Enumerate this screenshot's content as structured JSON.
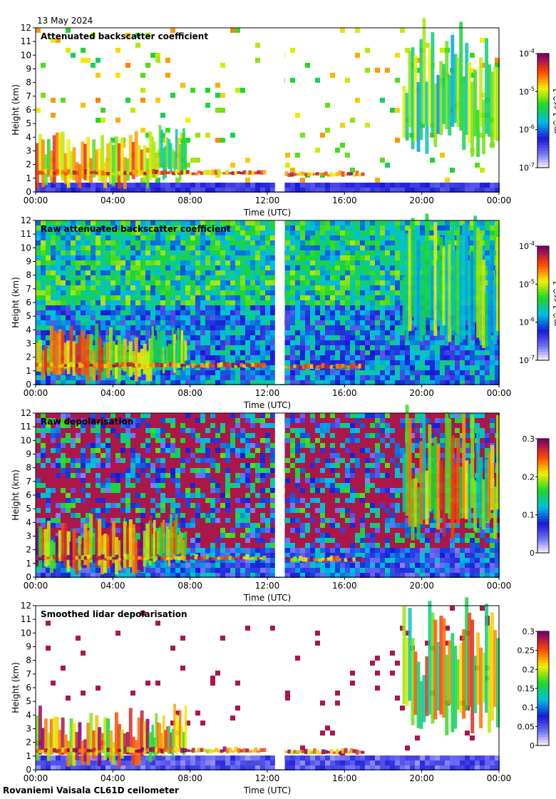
{
  "date": "13 May 2024",
  "instrument": "Rovaniemi Vaisala CL61D ceilometer",
  "chart_data": [
    {
      "type": "heatmap",
      "title": "Attenuated backscatter coefficient",
      "xlabel": "Time (UTC)",
      "ylabel": "Height (km)",
      "xticks": [
        "00:00",
        "04:00",
        "08:00",
        "12:00",
        "16:00",
        "20:00",
        "00:00"
      ],
      "xlim_hours": [
        0,
        24
      ],
      "ylim": [
        0,
        12
      ],
      "yticks": [
        "0",
        "1",
        "2",
        "3",
        "4",
        "5",
        "6",
        "7",
        "8",
        "9",
        "10",
        "11",
        "12"
      ],
      "data_gap_hours": [
        12.4,
        12.9
      ],
      "colorbar": {
        "scale": "log",
        "range": [
          1e-07,
          0.0001
        ],
        "ticks": [
          "10^-7",
          "10^-6",
          "10^-5",
          "10^-4"
        ],
        "unit": "m^-1 sr^-1"
      },
      "features": [
        {
          "name": "low cloud layer",
          "start_h": 0.0,
          "end_h": 6.0,
          "height_km": [
            0.2,
            3.8
          ],
          "level": 0.9
        },
        {
          "name": "cloud patches",
          "start_h": 5.9,
          "end_h": 7.8,
          "height_km": [
            0.8,
            4.1
          ],
          "level": 0.75
        },
        {
          "name": "thin layer",
          "start_h": 0.0,
          "end_h": 11.9,
          "height_km": [
            1.2,
            1.6
          ],
          "level": 1.0
        },
        {
          "name": "evening layer",
          "start_h": 12.9,
          "end_h": 17.0,
          "height_km": [
            1.1,
            1.5
          ],
          "level": 1.0
        },
        {
          "name": "high cloud",
          "start_h": 19.0,
          "end_h": 24.0,
          "height_km": [
            2.5,
            11.0
          ],
          "level": 0.7
        }
      ]
    },
    {
      "type": "heatmap",
      "title": "Raw attenuated backscatter coefficient",
      "xlabel": "Time (UTC)",
      "ylabel": "Height (km)",
      "xticks": [
        "00:00",
        "04:00",
        "08:00",
        "12:00",
        "16:00",
        "20:00",
        "00:00"
      ],
      "xlim_hours": [
        0,
        24
      ],
      "ylim": [
        0,
        12
      ],
      "yticks": [
        "0",
        "1",
        "2",
        "3",
        "4",
        "5",
        "6",
        "7",
        "8",
        "9",
        "10",
        "11",
        "12"
      ],
      "data_gap_hours": [
        12.4,
        12.9
      ],
      "colorbar": {
        "scale": "log",
        "range": [
          1e-07,
          0.0001
        ],
        "ticks": [
          "10^-7",
          "10^-6",
          "10^-5",
          "10^-4"
        ],
        "unit": "m^-1 sr^-1"
      }
    },
    {
      "type": "heatmap",
      "title": "Raw depolarisation",
      "xlabel": "Time (UTC)",
      "ylabel": "Height (km)",
      "xticks": [
        "00:00",
        "04:00",
        "08:00",
        "12:00",
        "16:00",
        "20:00",
        "00:00"
      ],
      "xlim_hours": [
        0,
        24
      ],
      "ylim": [
        0,
        12
      ],
      "yticks": [
        "0",
        "1",
        "2",
        "3",
        "4",
        "5",
        "6",
        "7",
        "8",
        "9",
        "10",
        "11",
        "12"
      ],
      "data_gap_hours": [
        12.4,
        12.9
      ],
      "colorbar": {
        "scale": "linear",
        "range": [
          0,
          0.3
        ],
        "ticks": [
          "0",
          "0.1",
          "0.2",
          "0.3"
        ],
        "unit": ""
      }
    },
    {
      "type": "heatmap",
      "title": "Smoothed lidar depolarisation",
      "xlabel": "Time (UTC)",
      "ylabel": "Height (km)",
      "xticks": [
        "00:00",
        "04:00",
        "08:00",
        "12:00",
        "16:00",
        "20:00",
        "00:00"
      ],
      "xlim_hours": [
        0,
        24
      ],
      "ylim": [
        0,
        12
      ],
      "yticks": [
        "0",
        "1",
        "2",
        "3",
        "4",
        "5",
        "6",
        "7",
        "8",
        "9",
        "10",
        "11",
        "12"
      ],
      "data_gap_hours": [
        12.4,
        12.9
      ],
      "colorbar": {
        "scale": "linear",
        "range": [
          0,
          0.3
        ],
        "ticks": [
          "0",
          "0.05",
          "0.1",
          "0.15",
          "0.2",
          "0.25",
          "0.3"
        ],
        "unit": ""
      }
    }
  ]
}
